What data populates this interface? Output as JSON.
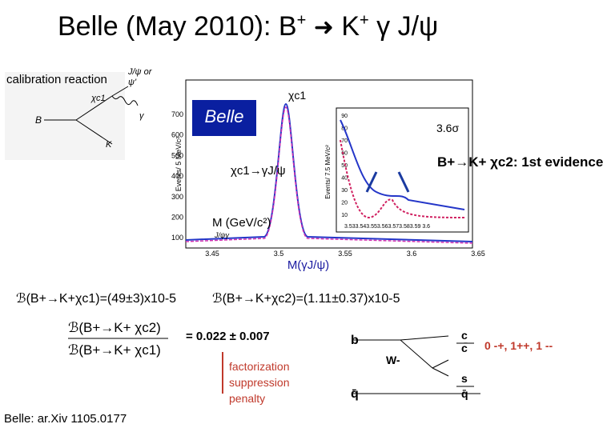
{
  "title": {
    "start": "Belle (May  2010): B",
    "sup1": "+",
    "k": "K",
    "sup2": "+",
    "end": "γ J/ψ"
  },
  "diagram": {
    "label": "calibration reaction",
    "psi": "J/ψ or",
    "psi2": "ψ'",
    "chi": "χc1",
    "gamma": "γ",
    "b": "B",
    "k": "K"
  },
  "plot": {
    "ylabel": "Events/ 5 MeV/c²",
    "yticks": [
      "700",
      "600",
      "500",
      "400",
      "300",
      "200",
      "100"
    ],
    "xticks": [
      "3.45",
      "3.5",
      "3.55",
      "3.6",
      "3.65"
    ],
    "peak": "χc1",
    "xlabel": "M (GeV/c²)",
    "xsub": "J/ψγ",
    "chan": "χc1→γJ/ψ",
    "sig": "3.6σ",
    "logo": "Belle",
    "inset_ylabel": "Events/ 7.5 MeV/c²",
    "inset_yticks": [
      "90",
      "80",
      "70",
      "60",
      "50",
      "40",
      "30",
      "20",
      "10"
    ],
    "inset_xticks": "3.533.543.553.563.573.583.59 3.6",
    "evidence": "B+→K+ χc2: 1st evidence",
    "mass": "M(γJ/ψ)"
  },
  "results": {
    "bf1": "ℬ(B+→K+χc1)=(49±3)x10-5",
    "bf2": "ℬ(B+→K+χc2)=(1.11±0.37)x10-5",
    "num": "ℬ(B+→K+ χc2)",
    "den": "ℬ(B+→K+ χc1)",
    "ratio": "= 0.022 ± 0.007",
    "penalty": "factorization suppression penalty",
    "jpc": "0 -+, 1++, 1 --",
    "ref": "Belle: ar.Xiv 1105.0177"
  },
  "feynman": {
    "b": "b",
    "c": "c",
    "cbar": "c̄",
    "w": "W-",
    "s": "s",
    "q1": "q̄",
    "q2": "q̄"
  }
}
